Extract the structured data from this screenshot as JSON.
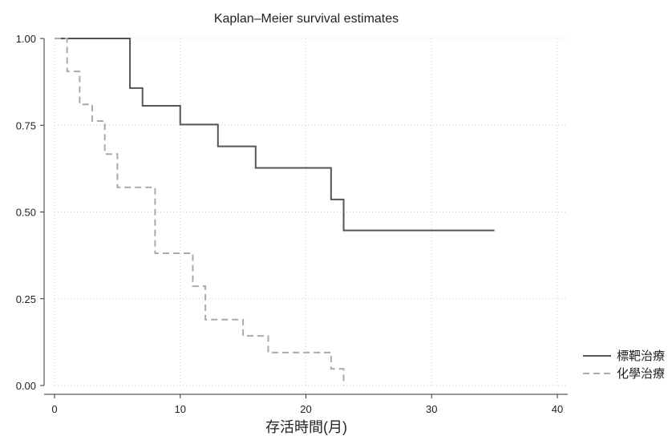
{
  "chart_data": {
    "type": "line",
    "title": "Kaplan–Meier survival estimates",
    "xlabel": "存活時間(月)",
    "ylabel": "",
    "xlim": [
      0,
      40
    ],
    "ylim": [
      0,
      1
    ],
    "x_ticks": [
      0,
      10,
      20,
      30,
      40
    ],
    "x_tick_labels": [
      "0",
      "10",
      "20",
      "30",
      "40"
    ],
    "y_ticks": [
      0,
      0.25,
      0.5,
      0.75,
      1
    ],
    "y_tick_labels": [
      "0.00",
      "0.25",
      "0.50",
      "0.75",
      "1.00"
    ],
    "grid": true,
    "legend_position": "bottom-right outside",
    "series": [
      {
        "name": "標靶治療",
        "color": "#555555",
        "style": "solid",
        "step": true,
        "x": [
          0,
          6,
          7,
          10,
          13,
          16,
          22,
          23,
          35
        ],
        "y": [
          1.0,
          0.857,
          0.806,
          0.752,
          0.689,
          0.627,
          0.536,
          0.447,
          0.447
        ]
      },
      {
        "name": "化學治療",
        "color": "#aaaaaa",
        "style": "dashed",
        "step": true,
        "x": [
          0,
          1,
          2,
          3,
          4,
          5,
          8,
          11,
          12,
          15,
          17,
          22,
          23
        ],
        "y": [
          1.0,
          0.905,
          0.81,
          0.762,
          0.667,
          0.571,
          0.381,
          0.286,
          0.19,
          0.143,
          0.095,
          0.048,
          0.0
        ]
      }
    ]
  }
}
